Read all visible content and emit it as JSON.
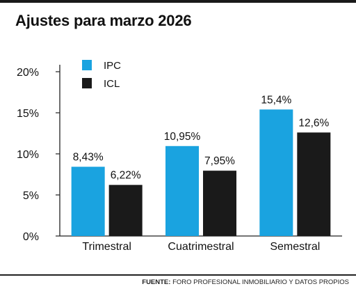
{
  "title": "Ajustes para marzo 2026",
  "source": {
    "label": "FUENTE:",
    "text": "FORO PROFESIONAL INMOBILIARIO Y DATOS PROPIOS"
  },
  "chart_data": {
    "type": "bar",
    "categories": [
      "Trimestral",
      "Cuatrimestral",
      "Semestral"
    ],
    "series": [
      {
        "name": "IPC",
        "values": [
          8.43,
          10.95,
          15.4
        ],
        "labels": [
          "8,43%",
          "10,95%",
          "15,4%"
        ],
        "color": "#1aa3e0"
      },
      {
        "name": "ICL",
        "values": [
          6.22,
          7.95,
          12.6
        ],
        "labels": [
          "6,22%",
          "7,95%",
          "12,6%"
        ],
        "color": "#1a1a1a"
      }
    ],
    "ylim": [
      0,
      20
    ],
    "yticks": [
      0,
      5,
      10,
      15,
      20
    ],
    "ytick_labels": [
      "0%",
      "5%",
      "10%",
      "15%",
      "20%"
    ],
    "legend": "top-left",
    "grid": false
  }
}
